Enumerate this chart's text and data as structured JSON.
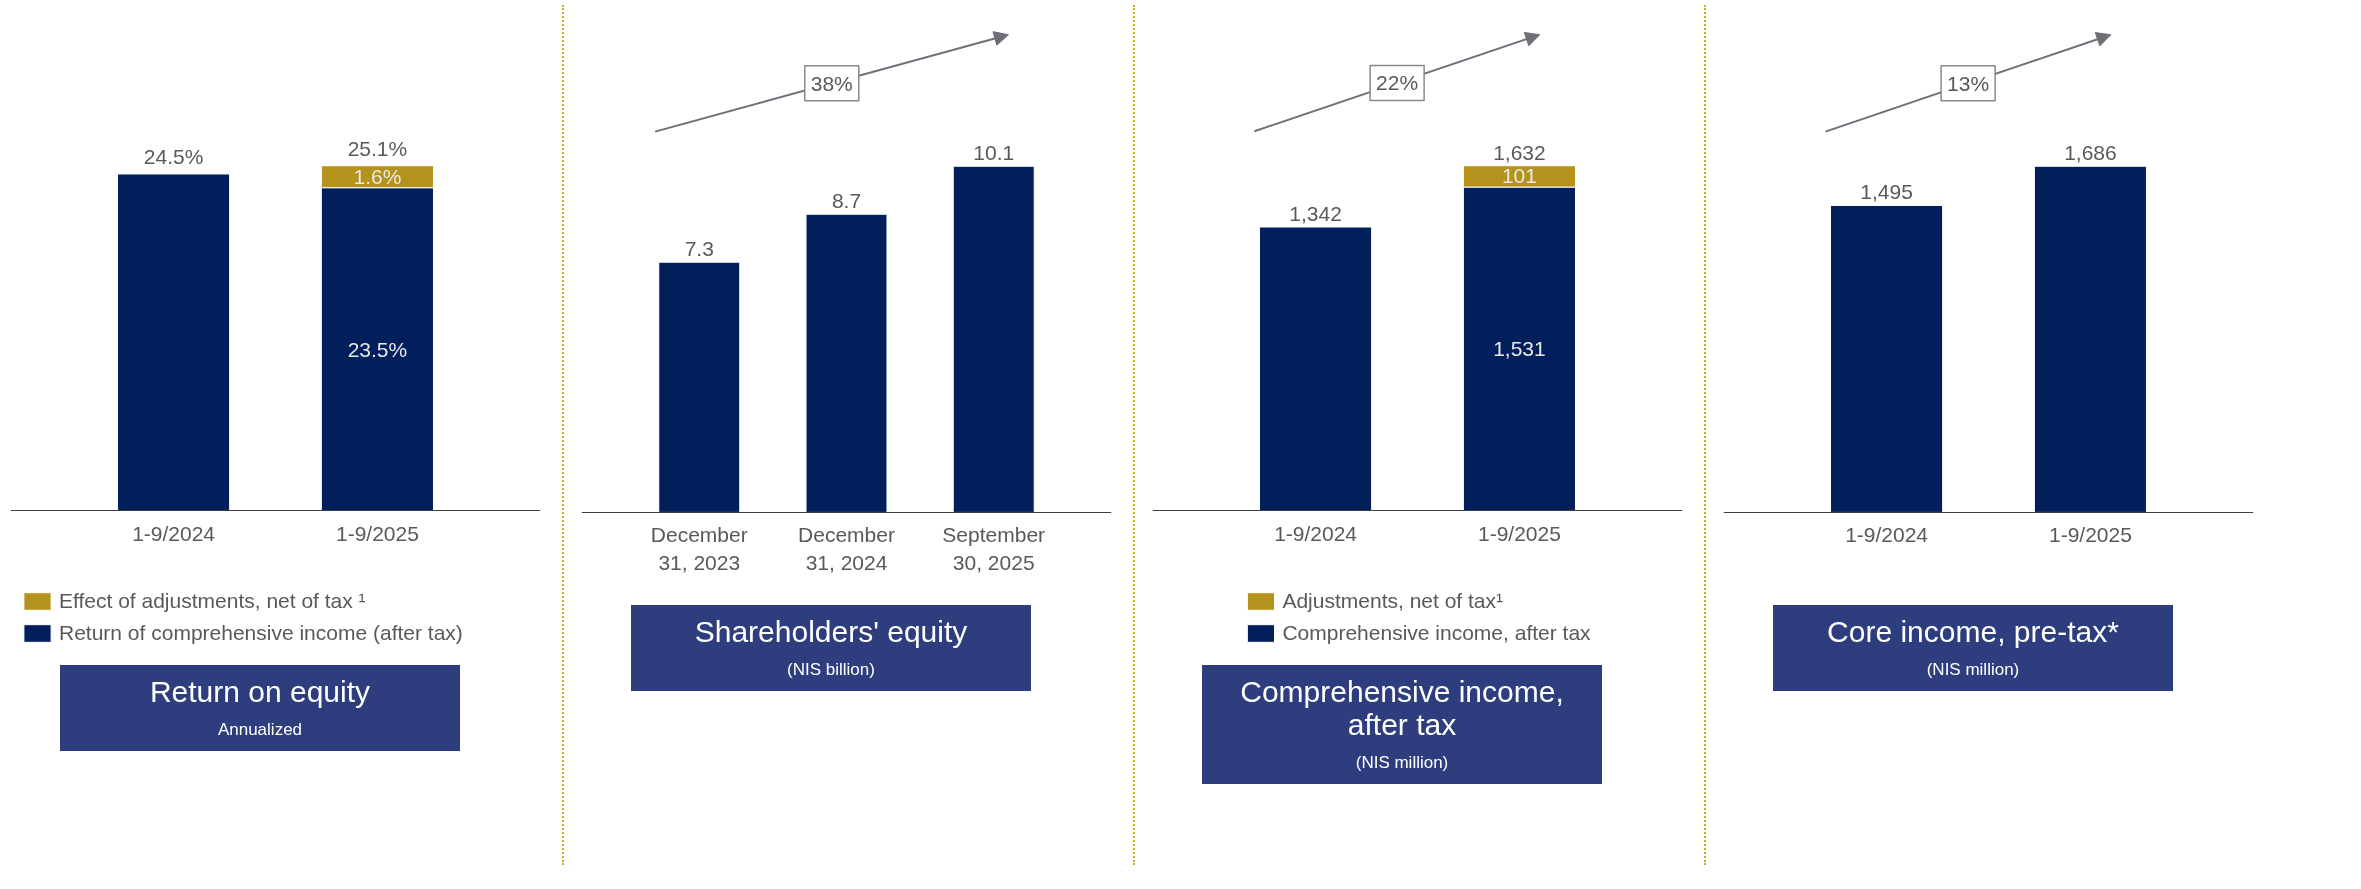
{
  "chart_data": [
    {
      "type": "bar",
      "title": "Return on equity",
      "categories": [
        "1-9/2024",
        "1-9/2025"
      ],
      "stacked": true,
      "legend": "bottom left",
      "series": [
        {
          "name": "Return of comprehensive income (after tax)",
          "color": "#001f5b",
          "values": [
            24.5,
            23.5
          ],
          "value_labels": [
            "24.5%",
            "23.5%"
          ]
        },
        {
          "name": "Effect of adjustments, net of tax ¹",
          "color": "#b5921b",
          "values": [
            null,
            1.6
          ],
          "value_labels": [
            null,
            "1.6%"
          ]
        }
      ],
      "totals": [
        null,
        "25.1%"
      ],
      "subtitle": "Annualized"
    },
    {
      "type": "bar",
      "title": "Shareholders' equity",
      "subtitle": "(NIS billion)",
      "categories": [
        "December 31, 2023",
        "December 31, 2024",
        "September 30, 2025"
      ],
      "series": [
        {
          "color": "#001f5b",
          "values": [
            7.3,
            8.7,
            10.1
          ]
        }
      ],
      "data_labels": true,
      "annotations": [
        "38%"
      ]
    },
    {
      "type": "bar",
      "title": "Comprehensive income, after tax",
      "subtitle": "(NIS million)",
      "categories": [
        "1-9/2024",
        "1-9/2025"
      ],
      "stacked": true,
      "legend": "bottom",
      "series": [
        {
          "name": "Comprehensive income, after tax",
          "color": "#001f5b",
          "values": [
            1342,
            1531
          ],
          "value_labels": [
            "1,342",
            "1,531"
          ]
        },
        {
          "name": "Adjustments, net of tax¹",
          "color": "#b5921b",
          "values": [
            null,
            101
          ],
          "value_labels": [
            null,
            "101"
          ]
        }
      ],
      "totals": [
        null,
        "1,632"
      ],
      "annotations": [
        "22%"
      ]
    },
    {
      "type": "bar",
      "title": "Core income, pre-tax*",
      "subtitle": "(NIS million)",
      "categories": [
        "1-9/2024",
        "1-9/2025"
      ],
      "series": [
        {
          "color": "#001f5b",
          "values": [
            1495,
            1686
          ],
          "value_labels": [
            "1,495",
            "1,686"
          ]
        }
      ],
      "annotations": [
        "13%"
      ]
    }
  ]
}
